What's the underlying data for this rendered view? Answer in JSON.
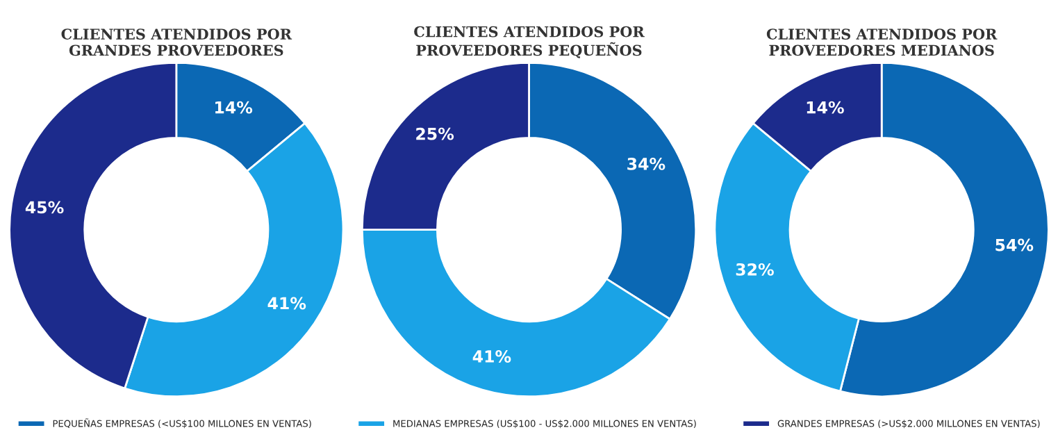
{
  "chart_data": [
    {
      "type": "donut",
      "title": "CLIENTES ATENDIDOS POR\nGRANDES PROVEEDORES",
      "categories": [
        "PEQUEÑAS EMPRESAS (<US$100 MILLONES EN VENTAS)",
        "MEDIANAS EMPRESAS (US$100 - US$2.000 MILLONES EN VENTAS)",
        "GRANDES EMPRESAS (>US$2.000 MILLONES EN VENTAS)"
      ],
      "values": [
        14,
        41,
        45
      ],
      "colors": [
        "#0b68b4",
        "#1aa3e6",
        "#1c2b8c"
      ],
      "value_labels": [
        "14%",
        "41%",
        "45%"
      ],
      "legend": "bottom"
    },
    {
      "type": "donut",
      "title": "CLIENTES ATENDIDOS POR\nPROVEEDORES PEQUEÑOS",
      "values": [
        34,
        41,
        25
      ],
      "colors": [
        "#0b68b4",
        "#1aa3e6",
        "#1c2b8c"
      ],
      "value_labels": [
        "34%",
        "41%",
        "25%"
      ]
    },
    {
      "type": "donut",
      "title": "CLIENTES ATENDIDOS POR\nPROVEEDORES MEDIANOS",
      "values": [
        54,
        32,
        14
      ],
      "colors": [
        "#0b68b4",
        "#1aa3e6",
        "#1c2b8c"
      ],
      "value_labels": [
        "54%",
        "32%",
        "14%"
      ]
    }
  ]
}
